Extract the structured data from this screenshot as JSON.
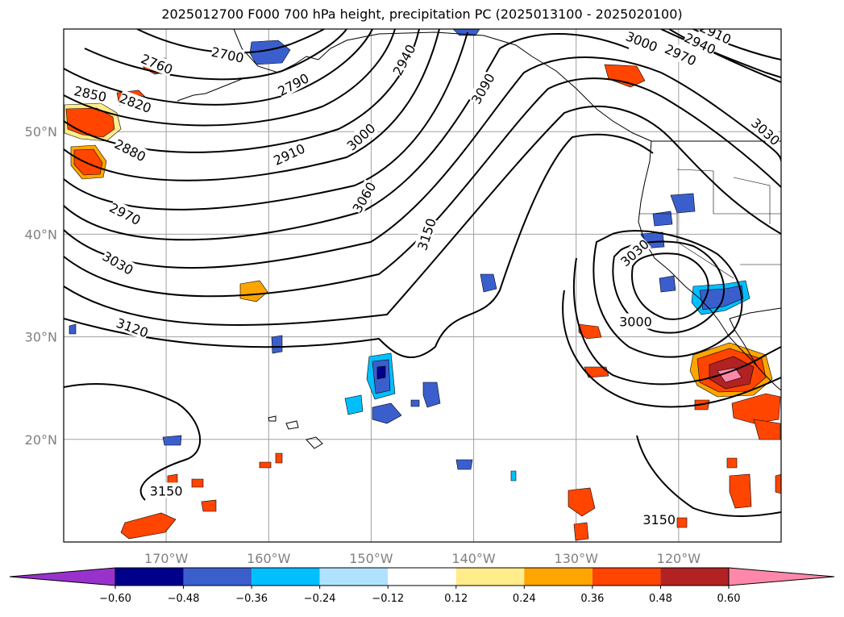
{
  "title": "2025012700 F000 700 hPa height, precipitation PC (2025013100 - 2025020100)",
  "map": {
    "lon_range": [
      -180,
      -110
    ],
    "lat_range": [
      10,
      60
    ],
    "lat_labels": [
      {
        "lat": 50,
        "text": "50°N"
      },
      {
        "lat": 40,
        "text": "40°N"
      },
      {
        "lat": 30,
        "text": "30°N"
      },
      {
        "lat": 20,
        "text": "20°N"
      }
    ],
    "lon_labels": [
      {
        "lon": -170,
        "text": "170°W"
      },
      {
        "lon": -160,
        "text": "160°W"
      },
      {
        "lon": -150,
        "text": "150°W"
      },
      {
        "lon": -140,
        "text": "140°W"
      },
      {
        "lon": -130,
        "text": "130°W"
      },
      {
        "lon": -120,
        "text": "120°W"
      }
    ],
    "contour_labels": [
      {
        "text": "2760",
        "lon": -170.9,
        "lat": 56.6,
        "rot": 22
      },
      {
        "text": "2700",
        "lon": -164.0,
        "lat": 57.5,
        "rot": 12
      },
      {
        "text": "2850",
        "lon": -177.4,
        "lat": 53.7,
        "rot": 12
      },
      {
        "text": "2820",
        "lon": -173.0,
        "lat": 52.8,
        "rot": 20
      },
      {
        "text": "2880",
        "lon": -173.5,
        "lat": 48.2,
        "rot": 27
      },
      {
        "text": "2970",
        "lon": -174.0,
        "lat": 42.0,
        "rot": 27
      },
      {
        "text": "3030",
        "lon": -174.7,
        "lat": 37.2,
        "rot": 30
      },
      {
        "text": "3120",
        "lon": -173.3,
        "lat": 30.9,
        "rot": 20
      },
      {
        "text": "2790",
        "lon": -157.6,
        "lat": 54.6,
        "rot": -28
      },
      {
        "text": "2910",
        "lon": -158.0,
        "lat": 47.8,
        "rot": -25
      },
      {
        "text": "3000",
        "lon": -151.0,
        "lat": 49.5,
        "rot": -42
      },
      {
        "text": "2940",
        "lon": -146.8,
        "lat": 57.0,
        "rot": -62
      },
      {
        "text": "3090",
        "lon": -139.1,
        "lat": 54.2,
        "rot": -60
      },
      {
        "text": "3060",
        "lon": -150.7,
        "lat": 43.6,
        "rot": -60
      },
      {
        "text": "3150",
        "lon": -144.6,
        "lat": 40.0,
        "rot": -72
      },
      {
        "text": "3000",
        "lon": -123.6,
        "lat": 58.8,
        "rot": 22
      },
      {
        "text": "2970",
        "lon": -119.8,
        "lat": 57.5,
        "rot": 25
      },
      {
        "text": "2940",
        "lon": -117.9,
        "lat": 58.6,
        "rot": 25
      },
      {
        "text": "2910",
        "lon": -116.4,
        "lat": 59.6,
        "rot": 25
      },
      {
        "text": "3030",
        "lon": -111.5,
        "lat": 50.0,
        "rot": 42
      },
      {
        "text": "3030",
        "lon": -124.3,
        "lat": 38.2,
        "rot": -42
      },
      {
        "text": "3000",
        "lon": -124.2,
        "lat": 31.5,
        "rot": 0
      },
      {
        "text": "3150",
        "lon": -170.0,
        "lat": 15.0,
        "rot": 0
      },
      {
        "text": "3150",
        "lon": -121.9,
        "lat": 12.2,
        "rot": 0
      }
    ]
  },
  "colorbar": {
    "colors": [
      "#9932cc",
      "#00008b",
      "#3a5fcd",
      "#00bfff",
      "#b0e2ff",
      "#ffffff",
      "#ffec8b",
      "#ffa500",
      "#ff4500",
      "#b22222",
      "#ff88aa"
    ],
    "tick_values": [
      -0.6,
      -0.48,
      -0.36,
      -0.24,
      -0.12,
      0.12,
      0.24,
      0.36,
      0.48,
      0.6
    ],
    "tick_labels": [
      "−0.60",
      "−0.48",
      "−0.36",
      "−0.24",
      "−0.12",
      "0.12",
      "0.24",
      "0.36",
      "0.48",
      "0.60"
    ]
  }
}
